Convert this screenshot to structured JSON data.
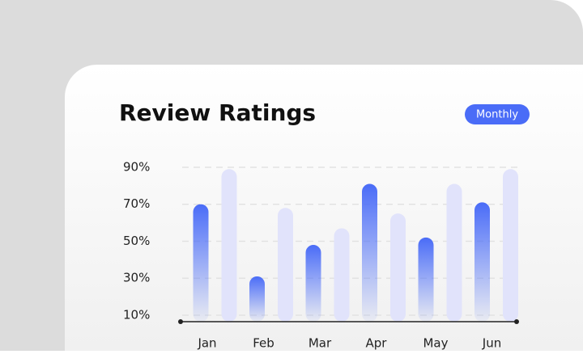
{
  "chart_data": {
    "type": "bar",
    "title": "Review Ratings",
    "button": "Monthly",
    "categories": [
      "Jan",
      "Feb",
      "Mar",
      "Apr",
      "May",
      "Jun"
    ],
    "series": [
      {
        "color": "#4a6cf7",
        "values": [
          70,
          31,
          48,
          81,
          52,
          71
        ]
      },
      {
        "color": "#e1e3fb",
        "values": [
          89,
          68,
          57,
          65,
          81,
          89
        ]
      }
    ],
    "ylim": [
      6.5,
      95
    ],
    "yticks": [
      {
        "value": 10,
        "label": "10%"
      },
      {
        "value": 30,
        "label": "30%"
      },
      {
        "value": 50,
        "label": "50%"
      },
      {
        "value": 70,
        "label": "70%"
      },
      {
        "value": 90,
        "label": "90%"
      }
    ],
    "grid": true
  }
}
